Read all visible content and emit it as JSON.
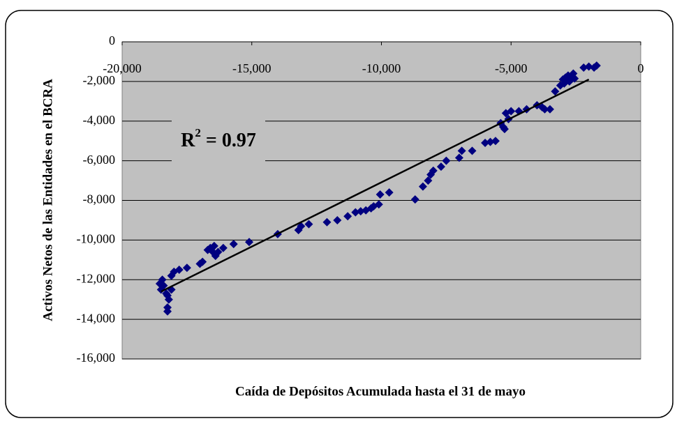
{
  "chart_data": {
    "type": "scatter",
    "x_label": "Caída de Depósitos Acumulada hasta el 31 de mayo",
    "y_label": "Activos Netos de las Entidades en el BCRA",
    "annotation": {
      "base": "R",
      "sup": "2",
      "rest": " = 0.97"
    },
    "xlim": [
      -20000,
      0
    ],
    "xticks": [
      {
        "value": -20000,
        "label": "-20,000"
      },
      {
        "value": -15000,
        "label": "-15,000"
      },
      {
        "value": -10000,
        "label": "-10,000"
      },
      {
        "value": -5000,
        "label": "-5,000"
      },
      0
    ],
    "ylim": [
      -16000,
      0
    ],
    "yticks": [
      0,
      {
        "value": -2000,
        "label": "-2,000"
      },
      {
        "value": -4000,
        "label": "-4,000"
      },
      {
        "value": -6000,
        "label": "-6,000"
      },
      {
        "value": -8000,
        "label": "-8,000"
      },
      {
        "value": -10000,
        "label": "-10,000"
      },
      {
        "value": -12000,
        "label": "-12,000"
      },
      {
        "value": -14000,
        "label": "-14,000"
      },
      {
        "value": -16000,
        "label": "-16,000"
      }
    ],
    "grid": true,
    "color": "#000080",
    "x": [
      -18550,
      -18450,
      -18500,
      -18400,
      -18300,
      -18250,
      -18250,
      -18200,
      -18250,
      -18100,
      -18100,
      -18000,
      -17800,
      -17500,
      -17000,
      -16900,
      -16700,
      -16600,
      -16500,
      -16450,
      -16400,
      -16300,
      -16100,
      -15700,
      -15100,
      -14000,
      -13200,
      -13100,
      -12800,
      -12100,
      -11700,
      -11300,
      -11000,
      -10800,
      -10600,
      -10400,
      -10300,
      -10100,
      -10050,
      -9700,
      -8700,
      -8400,
      -8200,
      -8100,
      -8000,
      -7700,
      -7500,
      -7000,
      -6900,
      -6500,
      -6000,
      -5800,
      -5600,
      -5400,
      -5300,
      -5250,
      -5200,
      -5100,
      -5000,
      -4700,
      -4400,
      -4000,
      -3800,
      -3700,
      -3500,
      -3300,
      -3100,
      -3000,
      -2950,
      -2900,
      -2800,
      -2750,
      -2700,
      -2600,
      -2550,
      -2200,
      -2000,
      -1800,
      -1700
    ],
    "values": [
      -12200,
      -12000,
      -12500,
      -12300,
      -12700,
      -13400,
      -13600,
      -13000,
      -12800,
      -12500,
      -11800,
      -11600,
      -11500,
      -11400,
      -11200,
      -11100,
      -10500,
      -10400,
      -10600,
      -10300,
      -10800,
      -10600,
      -10400,
      -10200,
      -10100,
      -9700,
      -9500,
      -9300,
      -9200,
      -9100,
      -9000,
      -8800,
      -8600,
      -8550,
      -8500,
      -8400,
      -8300,
      -8200,
      -7700,
      -7600,
      -7950,
      -7300,
      -7000,
      -6700,
      -6500,
      -6300,
      -6000,
      -5850,
      -5500,
      -5500,
      -5100,
      -5050,
      -5000,
      -4100,
      -4300,
      -4400,
      -3600,
      -3900,
      -3500,
      -3500,
      -3400,
      -3200,
      -3300,
      -3400,
      -3400,
      -2500,
      -2200,
      -1900,
      -2100,
      -1800,
      -1700,
      -2000,
      -1800,
      -1600,
      -1850,
      -1300,
      -1250,
      -1300,
      -1200
    ],
    "trendline": {
      "x": [
        -18500,
        -2000
      ],
      "y": [
        -12600,
        -1900
      ]
    }
  }
}
